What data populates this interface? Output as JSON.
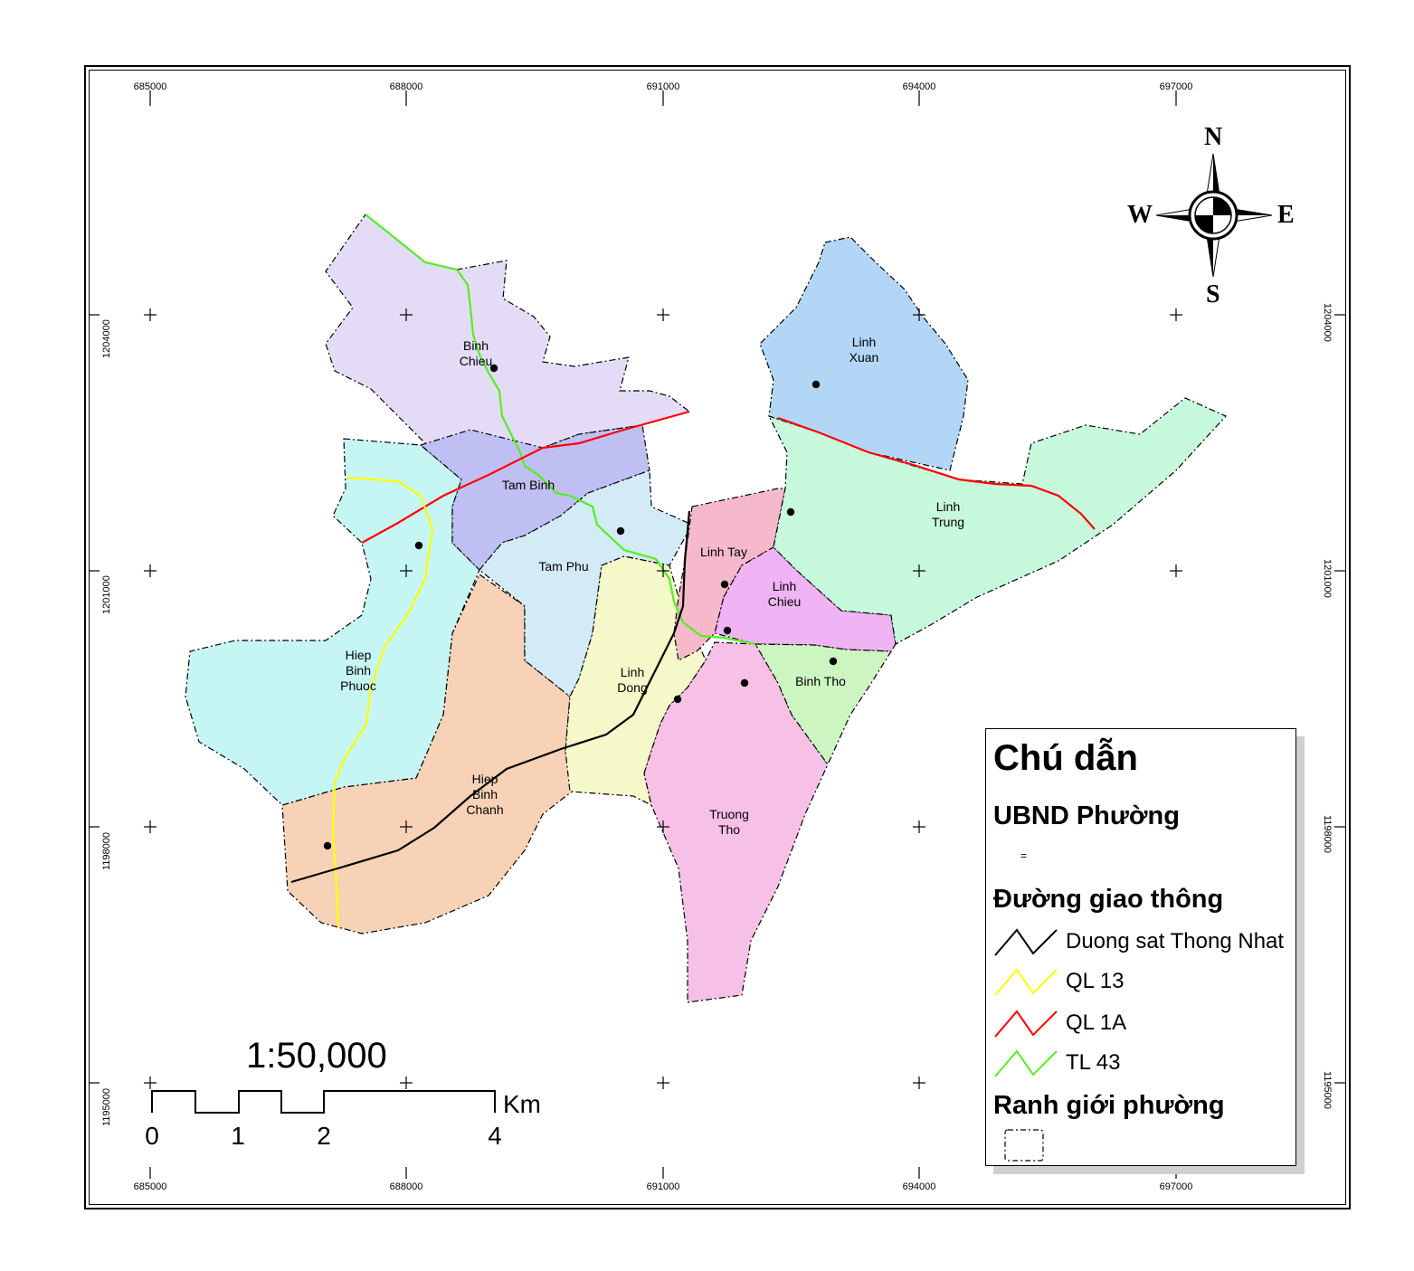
{
  "map": {
    "x_ticks": [
      "685000",
      "688000",
      "691000",
      "694000",
      "697000"
    ],
    "y_ticks": [
      "1204000",
      "1201000",
      "1198000",
      "1195000"
    ],
    "wards": [
      {
        "id": "binh-chieu",
        "name": "Binh\nChieu"
      },
      {
        "id": "linh-xuan",
        "name": "Linh\nXuan"
      },
      {
        "id": "tam-binh",
        "name": "Tam Binh"
      },
      {
        "id": "tam-phu",
        "name": "Tam Phu"
      },
      {
        "id": "linh-tay",
        "name": "Linh Tay"
      },
      {
        "id": "linh-chieu",
        "name": "Linh\nChieu"
      },
      {
        "id": "linh-trung",
        "name": "Linh\nTrung"
      },
      {
        "id": "hiep-binh-phuoc",
        "name": "Hiep\nBinh\nPhuoc"
      },
      {
        "id": "linh-dong",
        "name": "Linh\nDong"
      },
      {
        "id": "binh-tho",
        "name": "Binh Tho"
      },
      {
        "id": "hiep-binh-chanh",
        "name": "Hiep\nBinh\nChanh"
      },
      {
        "id": "truong-tho",
        "name": "Truong\nTho"
      }
    ],
    "colors": {
      "binh_chieu": "#e4dcf7",
      "linh_xuan": "#b3d6f7",
      "tam_binh": "#bfbff4",
      "tam_phu": "#d3ebf6",
      "linh_tay": "#f6b9cc",
      "linh_chieu": "#f0b3f4",
      "linh_trung": "#c7f9dd",
      "hiep_binh_phuoc": "#c6f6f4",
      "linh_dong": "#f5f8c8",
      "binh_tho": "#cdf5c2",
      "hiep_binh_chanh": "#f8d2b6",
      "truong_tho": "#f7c0e6",
      "railway": "#000000",
      "ql13": "#ffff00",
      "ql1a": "#ff0000",
      "tl43": "#55ee22"
    }
  },
  "compass": {
    "n": "N",
    "s": "S",
    "e": "E",
    "w": "W"
  },
  "scale": {
    "ratio": "1:50,000",
    "labels": [
      "0",
      "1",
      "2",
      "4"
    ],
    "unit": "Km"
  },
  "legend": {
    "title": "Chú dẫn",
    "office_heading": "UBND Phường",
    "office_marker": "=",
    "roads_heading": "Đường giao thông",
    "roads": [
      {
        "label": "Duong sat Thong Nhat",
        "color": "#000000"
      },
      {
        "label": "QL 13",
        "color": "#ffff00"
      },
      {
        "label": "QL 1A",
        "color": "#ff0000"
      },
      {
        "label": "TL 43",
        "color": "#55ee22"
      }
    ],
    "boundary_heading": "Ranh giới phường"
  }
}
